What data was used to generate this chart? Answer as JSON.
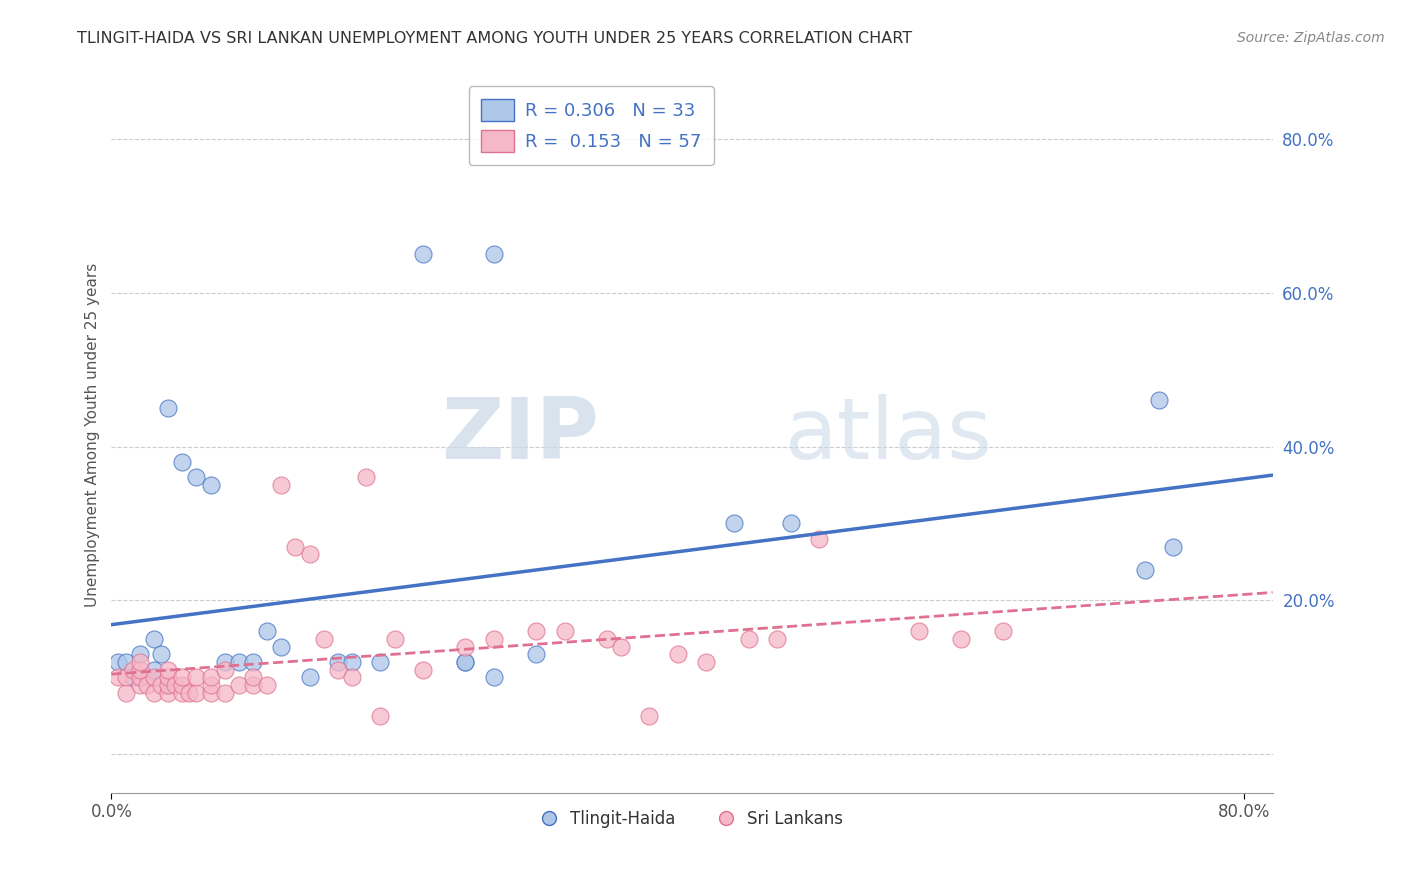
{
  "title": "TLINGIT-HAIDA VS SRI LANKAN UNEMPLOYMENT AMONG YOUTH UNDER 25 YEARS CORRELATION CHART",
  "source": "Source: ZipAtlas.com",
  "ylabel": "Unemployment Among Youth under 25 years",
  "xlim": [
    0.0,
    0.82
  ],
  "ylim": [
    -0.05,
    0.88
  ],
  "r_tlingit": 0.306,
  "n_tlingit": 33,
  "r_srilankan": 0.153,
  "n_srilankan": 57,
  "color_tlingit": "#aec6e8",
  "color_srilankan": "#f5b8c8",
  "color_tlingit_line": "#4472c4",
  "color_srilankan_line": "#e07090",
  "legend_label_tlingit": "Tlingit-Haida",
  "legend_label_srilankan": "Sri Lankans",
  "watermark_zip": "ZIP",
  "watermark_atlas": "atlas",
  "tlingit_x": [
    0.005,
    0.01,
    0.015,
    0.02,
    0.025,
    0.03,
    0.03,
    0.035,
    0.04,
    0.04,
    0.05,
    0.06,
    0.07,
    0.08,
    0.09,
    0.1,
    0.11,
    0.12,
    0.14,
    0.16,
    0.17,
    0.19,
    0.22,
    0.25,
    0.25,
    0.27,
    0.27,
    0.3,
    0.44,
    0.48,
    0.73,
    0.74,
    0.75
  ],
  "tlingit_y": [
    0.12,
    0.12,
    0.1,
    0.13,
    0.1,
    0.11,
    0.15,
    0.13,
    0.09,
    0.45,
    0.38,
    0.36,
    0.35,
    0.12,
    0.12,
    0.12,
    0.16,
    0.14,
    0.1,
    0.12,
    0.12,
    0.12,
    0.65,
    0.12,
    0.12,
    0.65,
    0.1,
    0.13,
    0.3,
    0.3,
    0.24,
    0.46,
    0.27
  ],
  "srilankan_x": [
    0.005,
    0.01,
    0.01,
    0.015,
    0.02,
    0.02,
    0.02,
    0.02,
    0.025,
    0.03,
    0.03,
    0.035,
    0.04,
    0.04,
    0.04,
    0.04,
    0.045,
    0.05,
    0.05,
    0.05,
    0.055,
    0.06,
    0.06,
    0.07,
    0.07,
    0.07,
    0.08,
    0.08,
    0.09,
    0.1,
    0.1,
    0.11,
    0.12,
    0.13,
    0.14,
    0.15,
    0.16,
    0.17,
    0.18,
    0.19,
    0.2,
    0.22,
    0.25,
    0.27,
    0.3,
    0.32,
    0.35,
    0.36,
    0.38,
    0.4,
    0.42,
    0.45,
    0.47,
    0.5,
    0.57,
    0.6,
    0.63
  ],
  "srilankan_y": [
    0.1,
    0.08,
    0.1,
    0.11,
    0.09,
    0.1,
    0.11,
    0.12,
    0.09,
    0.08,
    0.1,
    0.09,
    0.08,
    0.09,
    0.1,
    0.11,
    0.09,
    0.08,
    0.09,
    0.1,
    0.08,
    0.08,
    0.1,
    0.08,
    0.09,
    0.1,
    0.08,
    0.11,
    0.09,
    0.09,
    0.1,
    0.09,
    0.35,
    0.27,
    0.26,
    0.15,
    0.11,
    0.1,
    0.36,
    0.05,
    0.15,
    0.11,
    0.14,
    0.15,
    0.16,
    0.16,
    0.15,
    0.14,
    0.05,
    0.13,
    0.12,
    0.15,
    0.15,
    0.28,
    0.16,
    0.15,
    0.16
  ]
}
